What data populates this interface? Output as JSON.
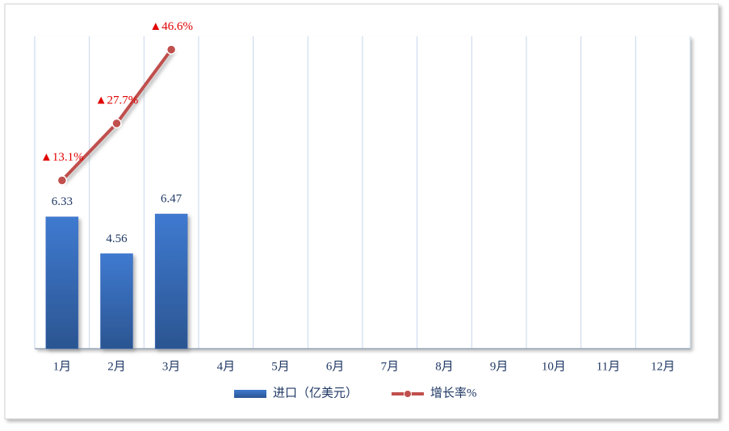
{
  "chart_data": {
    "type": "bar-line",
    "categories": [
      "1月",
      "2月",
      "3月",
      "4月",
      "5月",
      "6月",
      "7月",
      "8月",
      "9月",
      "10月",
      "11月",
      "12月"
    ],
    "series": [
      {
        "name": "进口（亿美元）",
        "type": "bar",
        "color": "#3a6fc0",
        "label_color": "#1f3864",
        "values": [
          6.33,
          4.56,
          6.47,
          null,
          null,
          null,
          null,
          null,
          null,
          null,
          null,
          null
        ]
      },
      {
        "name": "增长率%",
        "type": "line",
        "axis": "y2",
        "color": "#c0504d",
        "label_color": "#e00000",
        "values": [
          13.1,
          27.7,
          46.6,
          null,
          null,
          null,
          null,
          null,
          null,
          null,
          null,
          null
        ],
        "value_labels": [
          "▲13.1%",
          "▲27.7%",
          "▲46.6%",
          null,
          null,
          null,
          null,
          null,
          null,
          null,
          null,
          null
        ]
      }
    ],
    "ylim": [
      0,
      15
    ],
    "y2lim": [
      -30,
      50
    ],
    "grid": true,
    "legend": "bottom"
  }
}
